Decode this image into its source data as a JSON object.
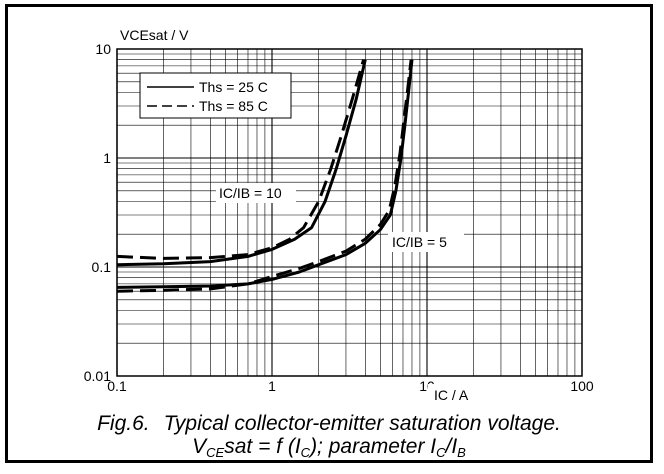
{
  "caption": {
    "fig": "Fig.6.",
    "title": "Typical collector-emitter saturation voltage.",
    "line2": {
      "v": "V",
      "v_sub": "CE",
      "mid": "sat = f (I",
      "ic_sub": "C",
      "param": "); parameter I",
      "ic2_sub": "C",
      "slash": "/I",
      "ib_sub": "B"
    }
  },
  "chart_data": {
    "type": "line",
    "ylabel": "VCEsat / V",
    "xlabel": "IC / A",
    "xscale": "log",
    "yscale": "log",
    "xlim": [
      0.1,
      100
    ],
    "ylim": [
      0.01,
      10
    ],
    "x_tick_labels": [
      "0.1",
      "1",
      "10",
      "100"
    ],
    "y_tick_labels": [
      "0.01",
      "0.1",
      "1",
      "10"
    ],
    "grid": true,
    "legend": {
      "placement": "top-left",
      "entries": [
        {
          "label": "Ths = 25 C",
          "style": "solid"
        },
        {
          "label": "Ths = 85 C",
          "style": "dashed"
        }
      ]
    },
    "annotations": [
      "IC/IB = 10",
      "IC/IB = 5"
    ],
    "series": [
      {
        "style": "solid",
        "group": "IC/IB = 10",
        "x": [
          0.1,
          0.2,
          0.4,
          0.7,
          1.0,
          1.4,
          1.8,
          2.2,
          2.6,
          3.0,
          3.5,
          4.0
        ],
        "y": [
          0.105,
          0.107,
          0.112,
          0.125,
          0.145,
          0.18,
          0.23,
          0.4,
          0.8,
          1.6,
          3.5,
          8.0
        ]
      },
      {
        "style": "dashed",
        "group": "IC/IB = 10",
        "x": [
          0.1,
          0.2,
          0.4,
          0.7,
          1.0,
          1.3,
          1.6,
          2.0,
          2.4,
          2.8,
          3.3,
          3.9
        ],
        "y": [
          0.125,
          0.12,
          0.122,
          0.13,
          0.15,
          0.18,
          0.23,
          0.4,
          0.8,
          1.6,
          3.5,
          8.0
        ]
      },
      {
        "style": "solid",
        "group": "IC/IB = 5",
        "x": [
          0.1,
          0.2,
          0.4,
          0.7,
          1.0,
          1.5,
          2.0,
          3.0,
          4.0,
          5.0,
          5.8,
          6.3,
          6.8,
          7.2,
          7.6,
          8.0
        ],
        "y": [
          0.065,
          0.066,
          0.067,
          0.07,
          0.077,
          0.09,
          0.105,
          0.13,
          0.165,
          0.22,
          0.3,
          0.5,
          1.0,
          2.0,
          4.0,
          8.0
        ]
      },
      {
        "style": "dashed",
        "group": "IC/IB = 5",
        "x": [
          0.1,
          0.2,
          0.4,
          0.7,
          1.0,
          1.5,
          2.0,
          3.0,
          4.0,
          5.0,
          5.7,
          6.2,
          6.7,
          7.1,
          7.5,
          7.9
        ],
        "y": [
          0.06,
          0.061,
          0.063,
          0.07,
          0.082,
          0.097,
          0.112,
          0.14,
          0.18,
          0.245,
          0.33,
          0.55,
          1.1,
          2.2,
          4.2,
          8.0
        ]
      }
    ]
  }
}
